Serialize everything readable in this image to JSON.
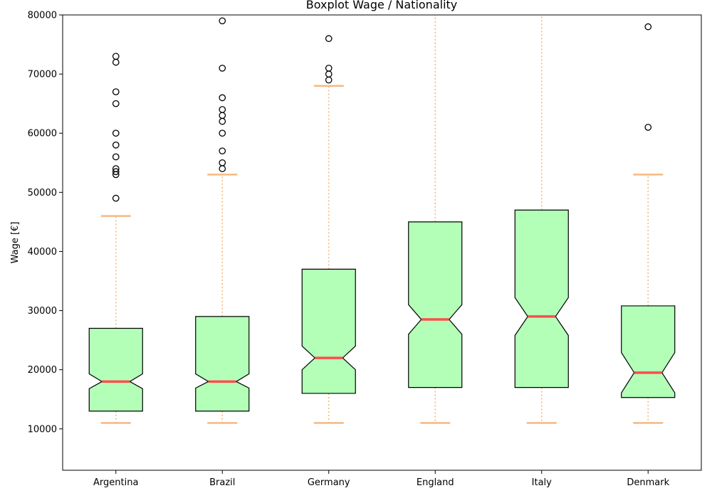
{
  "chart_data": {
    "type": "boxplot",
    "title": "Boxplot Wage / Nationality",
    "xlabel": "",
    "ylabel": "Wage [€]",
    "ylim": [
      3000,
      80000
    ],
    "yticks": [
      10000,
      20000,
      30000,
      40000,
      50000,
      60000,
      70000,
      80000
    ],
    "ytick_labels": [
      "10000",
      "20000",
      "30000",
      "40000",
      "50000",
      "60000",
      "70000",
      "80000"
    ],
    "grid": false,
    "notched": true,
    "colors": {
      "box_fill": "#b3ffb8",
      "box_edge": "#000000",
      "median": "#ff4d4d",
      "whisker": "#f5b97f",
      "cap": "#f5b97f",
      "flier_edge": "#000000"
    },
    "categories": [
      "Argentina",
      "Brazil",
      "Germany",
      "England",
      "Italy",
      "Denmark"
    ],
    "boxes": [
      {
        "label": "Argentina",
        "q1": 13000,
        "median": 18000,
        "q3": 27000,
        "notch_low": 16800,
        "notch_high": 19300,
        "whislo": 11000,
        "whishi": 46000,
        "fliers": [
          49000,
          53000,
          53500,
          54000,
          56000,
          58000,
          60000,
          65000,
          67000,
          72000,
          73000
        ]
      },
      {
        "label": "Brazil",
        "q1": 13000,
        "median": 18000,
        "q3": 29000,
        "notch_low": 16900,
        "notch_high": 19300,
        "whislo": 11000,
        "whishi": 53000,
        "fliers": [
          54000,
          55000,
          57000,
          60000,
          62000,
          63000,
          64000,
          66000,
          71000,
          79000
        ]
      },
      {
        "label": "Germany",
        "q1": 16000,
        "median": 22000,
        "q3": 37000,
        "notch_low": 20000,
        "notch_high": 24000,
        "whislo": 11000,
        "whishi": 68000,
        "fliers": [
          69000,
          70000,
          71000,
          76000
        ]
      },
      {
        "label": "England",
        "q1": 17000,
        "median": 28500,
        "q3": 45000,
        "notch_low": 26000,
        "notch_high": 31000,
        "whislo": 11000,
        "whishi": 80000,
        "fliers": []
      },
      {
        "label": "Italy",
        "q1": 17000,
        "median": 29000,
        "q3": 47000,
        "notch_low": 25800,
        "notch_high": 32200,
        "whislo": 11000,
        "whishi": 80000,
        "fliers": []
      },
      {
        "label": "Denmark",
        "q1": 15300,
        "median": 19500,
        "q3": 30800,
        "notch_low": 16100,
        "notch_high": 22900,
        "whislo": 11000,
        "whishi": 53000,
        "fliers": [
          61000,
          78000
        ]
      }
    ]
  }
}
